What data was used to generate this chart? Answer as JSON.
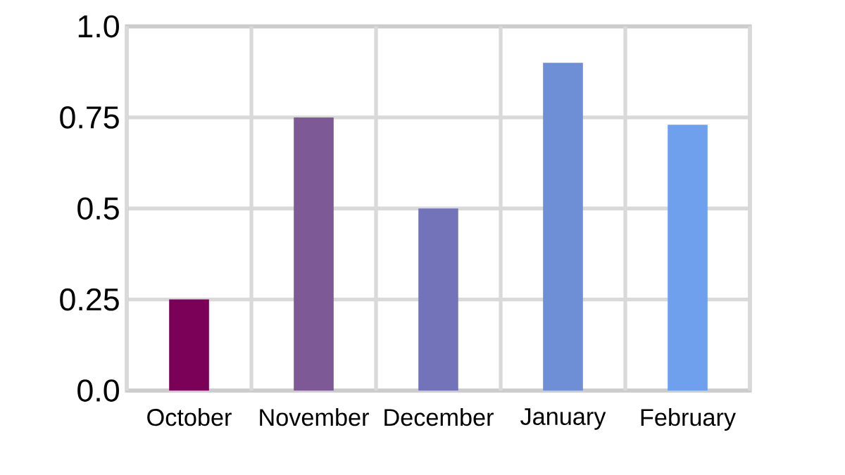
{
  "chart_data": {
    "type": "bar",
    "categories": [
      "October",
      "November",
      "December",
      "January",
      "February"
    ],
    "values": [
      0.25,
      0.75,
      0.5,
      0.9,
      0.73
    ],
    "colors": [
      "#7b0057",
      "#7d5a96",
      "#7273b8",
      "#6e8fd6",
      "#6fa0ee"
    ],
    "ylim": [
      0,
      1
    ],
    "yticks": [
      {
        "value": 0,
        "label": "0.0"
      },
      0.25,
      0.5,
      0.75,
      {
        "value": 1,
        "label": "1.0"
      }
    ],
    "grid": true
  }
}
